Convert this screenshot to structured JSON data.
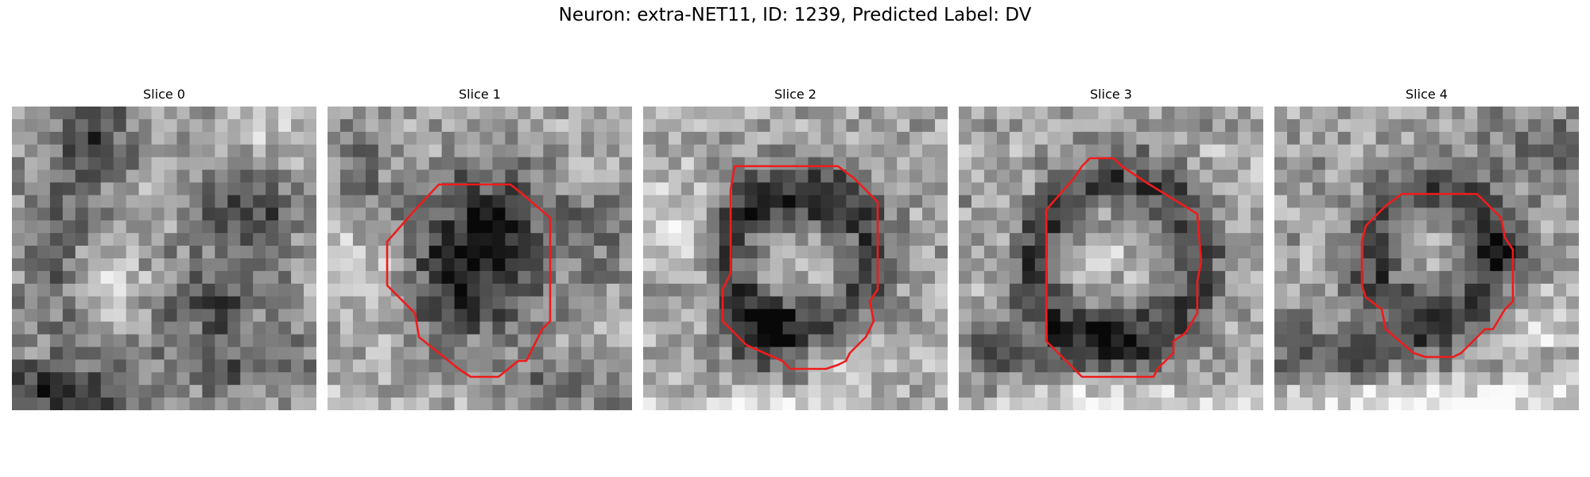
{
  "figure": {
    "title": "Neuron: extra-NET11, ID: 1239, Predicted Label: DV"
  },
  "colors": {
    "contour": "#ee1c1c",
    "background": "#ffffff"
  },
  "slices": [
    {
      "label": "Slice 0",
      "has_contour": false
    },
    {
      "label": "Slice 1",
      "has_contour": true
    },
    {
      "label": "Slice 2",
      "has_contour": true
    },
    {
      "label": "Slice 3",
      "has_contour": true
    },
    {
      "label": "Slice 4",
      "has_contour": true
    }
  ]
}
